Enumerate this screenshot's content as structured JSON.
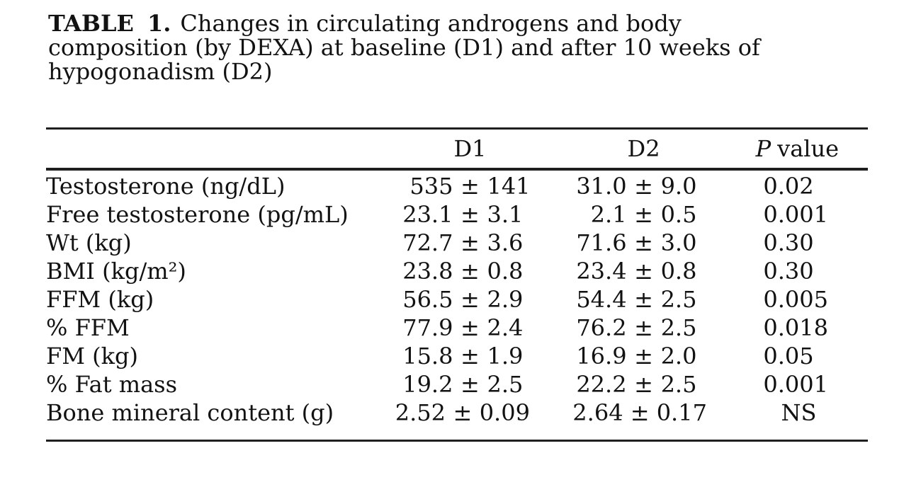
{
  "page": {
    "background": "#ffffff",
    "text_color": "#121212",
    "rule_color": "#1f1f1f"
  },
  "caption": {
    "label": "TABLE 1.",
    "lines": [
      "Changes in circulating androgens and body",
      "composition (by DEXA) at baseline (D1) and after 10 weeks of",
      "hypogonadism (D2)"
    ]
  },
  "table": {
    "pm_symbol": "±",
    "columns": {
      "label": "",
      "d1": "D1",
      "d2": "D2",
      "p_italic": "P",
      "p_rest": "value"
    },
    "rows": [
      {
        "label": "Testosterone (ng/dL)",
        "d1_mean": "535",
        "d1_sd": "141",
        "d2_mean": "31.0",
        "d2_sd": "9.0",
        "p": "0.02"
      },
      {
        "label": "Free testosterone (pg/mL)",
        "d1_mean": "23.1",
        "d1_sd": "3.1",
        "d2_mean": "2.1",
        "d2_sd": "0.5",
        "p": "0.001"
      },
      {
        "label": "Wt (kg)",
        "d1_mean": "72.7",
        "d1_sd": "3.6",
        "d2_mean": "71.6",
        "d2_sd": "3.0",
        "p": "0.30"
      },
      {
        "label": "BMI (kg/m²)",
        "d1_mean": "23.8",
        "d1_sd": "0.8",
        "d2_mean": "23.4",
        "d2_sd": "0.8",
        "p": "0.30"
      },
      {
        "label": "FFM (kg)",
        "d1_mean": "56.5",
        "d1_sd": "2.9",
        "d2_mean": "54.4",
        "d2_sd": "2.5",
        "p": "0.005"
      },
      {
        "label": "% FFM",
        "d1_mean": "77.9",
        "d1_sd": "2.4",
        "d2_mean": "76.2",
        "d2_sd": "2.5",
        "p": "0.018"
      },
      {
        "label": "FM (kg)",
        "d1_mean": "15.8",
        "d1_sd": "1.9",
        "d2_mean": "16.9",
        "d2_sd": "2.0",
        "p": "0.05"
      },
      {
        "label": "% Fat mass",
        "d1_mean": "19.2",
        "d1_sd": "2.5",
        "d2_mean": "22.2",
        "d2_sd": "2.5",
        "p": "0.001"
      },
      {
        "label": "Bone mineral content (g)",
        "d1_mean": "2.52",
        "d1_sd": "0.09",
        "d2_mean": "2.64",
        "d2_sd": "0.17",
        "p": "NS"
      }
    ]
  }
}
